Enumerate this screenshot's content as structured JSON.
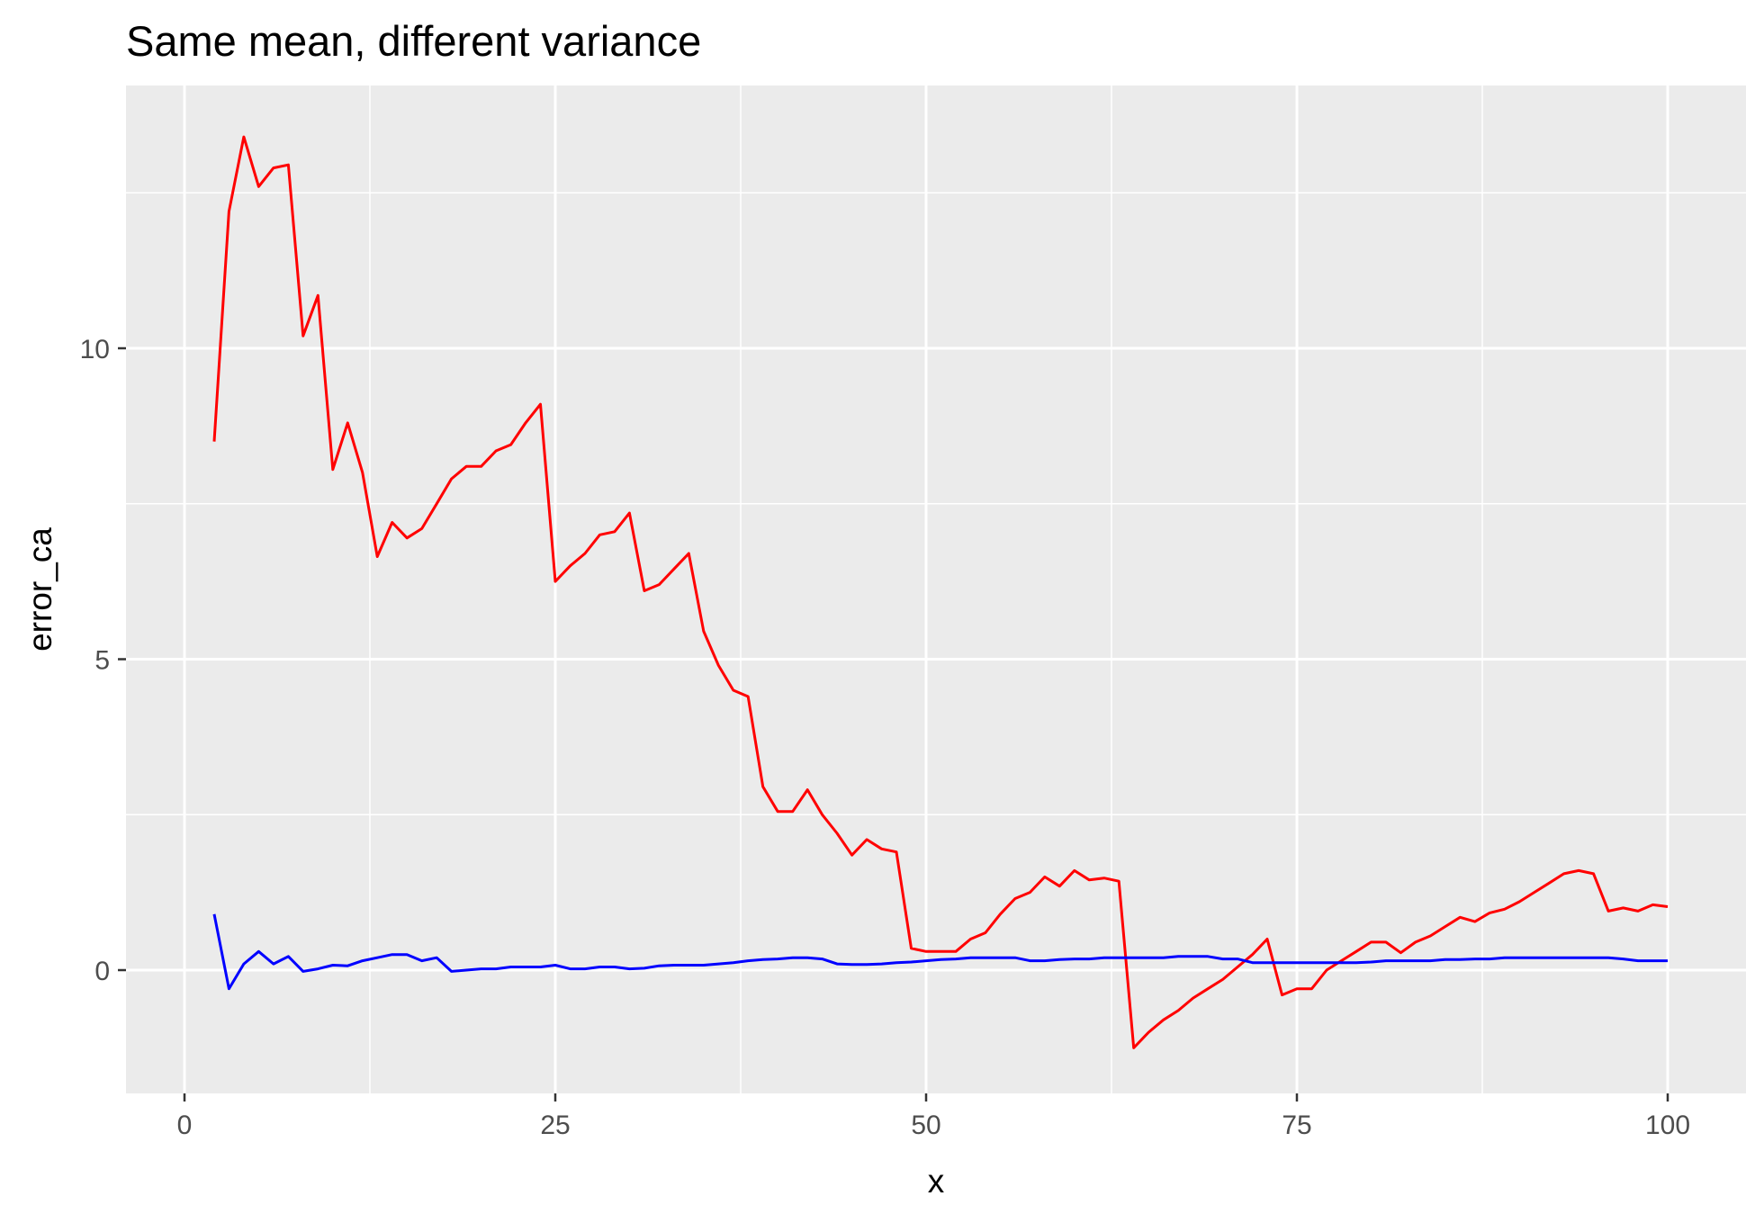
{
  "chart_data": {
    "type": "line",
    "title": "Same mean, different variance",
    "xlabel": "x",
    "ylabel": "error_ca",
    "xlim": [
      -4,
      101
    ],
    "ylim": [
      -1.95,
      14.0
    ],
    "x_ticks": [
      0,
      25,
      50,
      75,
      100
    ],
    "x_tick_labels": [
      "0",
      "25",
      "50",
      "75",
      "100"
    ],
    "x_minor": [
      12.5,
      37.5,
      62.5,
      87.5
    ],
    "y_ticks": [
      0,
      5,
      10
    ],
    "y_tick_labels": [
      "0",
      "5",
      "10"
    ],
    "y_minor": [
      -2.5,
      2.5,
      7.5,
      12.5
    ],
    "grid": true,
    "legend": "none",
    "background": "#ebebeb",
    "grid_color": "#ffffff",
    "series": [
      {
        "color": "#ff0000",
        "x": [
          2,
          3,
          4,
          5,
          6,
          7,
          8,
          9,
          10,
          11,
          12,
          13,
          14,
          15,
          16,
          17,
          18,
          19,
          20,
          21,
          22,
          23,
          24,
          25,
          26,
          27,
          28,
          29,
          30,
          31,
          32,
          33,
          34,
          35,
          36,
          37,
          38,
          39,
          40,
          41,
          42,
          43,
          44,
          45,
          46,
          47,
          48,
          49,
          50,
          51,
          52,
          53,
          54,
          55,
          56,
          57,
          58,
          59,
          60,
          61,
          62,
          63,
          64,
          65,
          66,
          67,
          68,
          69,
          70,
          71,
          72,
          73,
          74,
          75,
          76,
          77,
          78,
          79,
          80,
          81,
          82,
          83,
          84,
          85,
          86,
          87,
          88,
          89,
          90,
          91,
          92,
          93,
          94,
          95,
          96,
          97,
          98,
          99,
          100
        ],
        "y": [
          8.5,
          12.2,
          13.4,
          12.6,
          12.9,
          12.95,
          10.2,
          10.85,
          8.05,
          8.8,
          8.0,
          6.65,
          7.2,
          6.95,
          7.1,
          7.5,
          7.9,
          8.1,
          8.1,
          8.35,
          8.45,
          8.8,
          9.1,
          6.25,
          6.5,
          6.7,
          7.0,
          7.05,
          7.35,
          6.1,
          6.2,
          6.45,
          6.7,
          5.45,
          4.9,
          4.5,
          4.4,
          2.95,
          2.55,
          2.55,
          2.9,
          2.5,
          2.2,
          1.85,
          2.1,
          1.95,
          1.9,
          0.35,
          0.3,
          0.3,
          0.3,
          0.5,
          0.6,
          0.9,
          1.15,
          1.25,
          1.5,
          1.35,
          1.6,
          1.45,
          1.48,
          1.43,
          -1.25,
          -1.0,
          -0.8,
          -0.65,
          -0.45,
          -0.3,
          -0.15,
          0.05,
          0.25,
          0.5,
          -0.4,
          -0.3,
          -0.3,
          0.0,
          0.15,
          0.3,
          0.45,
          0.45,
          0.28,
          0.45,
          0.55,
          0.7,
          0.85,
          0.78,
          0.92,
          0.98,
          1.1,
          1.25,
          1.4,
          1.55,
          1.6,
          1.55,
          0.95,
          1.0,
          0.95,
          1.05,
          1.02
        ]
      },
      {
        "color": "#0000ff",
        "x": [
          2,
          3,
          4,
          5,
          6,
          7,
          8,
          9,
          10,
          11,
          12,
          13,
          14,
          15,
          16,
          17,
          18,
          19,
          20,
          21,
          22,
          23,
          24,
          25,
          26,
          27,
          28,
          29,
          30,
          31,
          32,
          33,
          34,
          35,
          36,
          37,
          38,
          39,
          40,
          41,
          42,
          43,
          44,
          45,
          46,
          47,
          48,
          49,
          50,
          51,
          52,
          53,
          54,
          55,
          56,
          57,
          58,
          59,
          60,
          61,
          62,
          63,
          64,
          65,
          66,
          67,
          68,
          69,
          70,
          71,
          72,
          73,
          74,
          75,
          76,
          77,
          78,
          79,
          80,
          81,
          82,
          83,
          84,
          85,
          86,
          87,
          88,
          89,
          90,
          91,
          92,
          93,
          94,
          95,
          96,
          97,
          98,
          99,
          100
        ],
        "y": [
          0.9,
          -0.3,
          0.1,
          0.3,
          0.1,
          0.22,
          -0.02,
          0.02,
          0.08,
          0.07,
          0.15,
          0.2,
          0.25,
          0.25,
          0.15,
          0.2,
          -0.02,
          0.0,
          0.02,
          0.02,
          0.05,
          0.05,
          0.05,
          0.08,
          0.02,
          0.02,
          0.05,
          0.05,
          0.02,
          0.03,
          0.07,
          0.08,
          0.08,
          0.08,
          0.1,
          0.12,
          0.15,
          0.17,
          0.18,
          0.2,
          0.2,
          0.18,
          0.1,
          0.09,
          0.09,
          0.1,
          0.12,
          0.13,
          0.15,
          0.17,
          0.18,
          0.2,
          0.2,
          0.2,
          0.2,
          0.15,
          0.15,
          0.17,
          0.18,
          0.18,
          0.2,
          0.2,
          0.2,
          0.2,
          0.2,
          0.22,
          0.22,
          0.22,
          0.18,
          0.18,
          0.12,
          0.12,
          0.12,
          0.12,
          0.12,
          0.12,
          0.12,
          0.12,
          0.13,
          0.15,
          0.15,
          0.15,
          0.15,
          0.17,
          0.17,
          0.18,
          0.18,
          0.2,
          0.2,
          0.2,
          0.2,
          0.2,
          0.2,
          0.2,
          0.2,
          0.18,
          0.15,
          0.15,
          0.15
        ]
      }
    ]
  }
}
